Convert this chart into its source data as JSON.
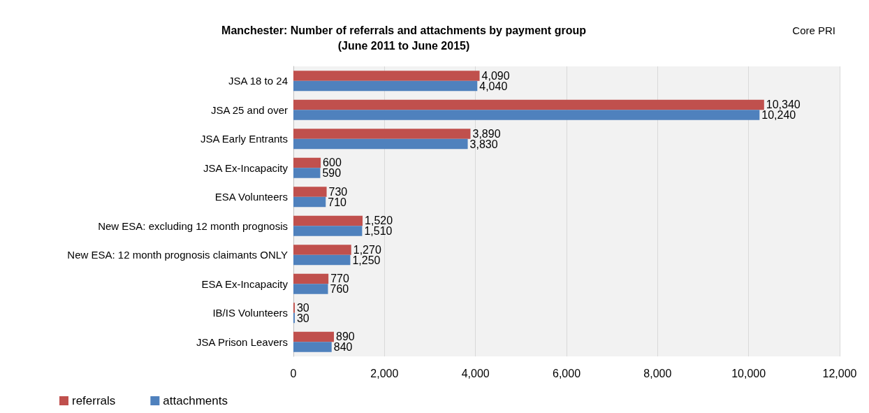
{
  "chart_data": {
    "type": "bar",
    "orientation": "horizontal",
    "title": "Manchester: Number of referrals and attachments by payment group",
    "subtitle": "(June 2011 to June 2015)",
    "annotations": [
      "Core PRI"
    ],
    "categories": [
      "JSA 18 to 24",
      "JSA 25 and over",
      "JSA Early Entrants",
      "JSA Ex-Incapacity",
      "ESA Volunteers",
      "New ESA: excluding 12 month prognosis",
      "New ESA: 12 month prognosis claimants ONLY",
      "ESA Ex-Incapacity",
      "IB/IS Volunteers",
      "JSA Prison Leavers"
    ],
    "series": [
      {
        "name": "referrals",
        "color": "#c0504d",
        "values": [
          4090,
          10340,
          3890,
          600,
          730,
          1520,
          1270,
          770,
          30,
          890
        ],
        "value_labels": [
          "4,090",
          "10,340",
          "3,890",
          "600",
          "730",
          "1,520",
          "1,270",
          "770",
          "30",
          "890"
        ]
      },
      {
        "name": "attachments",
        "color": "#4f81bd",
        "values": [
          4040,
          10240,
          3830,
          590,
          710,
          1510,
          1250,
          760,
          30,
          840
        ],
        "value_labels": [
          "4,040",
          "10,240",
          "3,830",
          "590",
          "710",
          "1,510",
          "1,250",
          "760",
          "30",
          "840"
        ]
      }
    ],
    "xlim": [
      0,
      12000
    ],
    "xticks": [
      0,
      {
        "value": 2000,
        "label": "2,000"
      },
      {
        "value": 4000,
        "label": "4,000"
      },
      {
        "value": 6000,
        "label": "6,000"
      },
      {
        "value": 8000,
        "label": "8,000"
      },
      {
        "value": 10000,
        "label": "10,000"
      },
      {
        "value": 12000,
        "label": "12,000"
      }
    ],
    "grid": "x",
    "legend": "bottom left"
  }
}
